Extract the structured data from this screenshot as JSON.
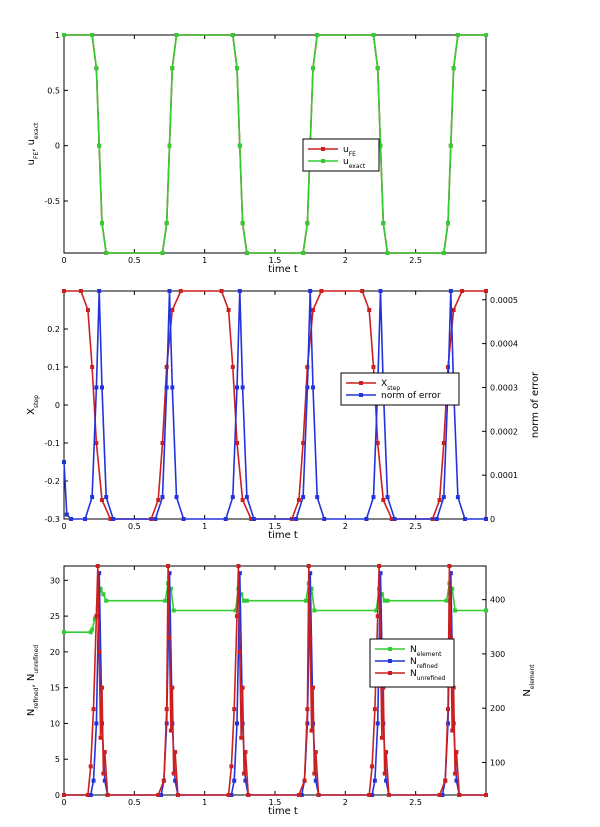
{
  "charts": [
    {
      "id": "panel1",
      "type": "line",
      "xlabel": "time t",
      "ylabel_left": {
        "parts": [
          {
            "t": "u"
          },
          {
            "t": "FE",
            "sub": true
          },
          {
            "t": ", u"
          },
          {
            "t": "exact",
            "sub": true
          }
        ]
      },
      "xlim": [
        0,
        3
      ],
      "ylim_left": [
        -0.97,
        1.0
      ],
      "xticks": [
        "0",
        "0.5",
        "1",
        "1.5",
        "2",
        "2.5"
      ],
      "xtick_values": [
        0,
        0.5,
        1,
        1.5,
        2,
        2.5
      ],
      "yticks_left": [
        "-0.5",
        "0",
        "0.5",
        "1"
      ],
      "ytick_values_left": [
        -0.5,
        0,
        0.5,
        1
      ],
      "legend": {
        "placement": "center-right",
        "entries": [
          {
            "parts": [
              {
                "t": "u"
              },
              {
                "t": "FE",
                "sub": true
              }
            ],
            "color": "#cc2020"
          },
          {
            "parts": [
              {
                "t": "u"
              },
              {
                "t": "exact",
                "sub": true
              }
            ],
            "color": "#33cc33"
          }
        ]
      },
      "series": [
        {
          "name": "u_FE",
          "axis": "left",
          "color": "#cc2020",
          "marker": "square",
          "x": [
            0,
            0.2,
            0.23,
            0.25,
            0.27,
            0.3,
            0.7,
            0.73,
            0.75,
            0.77,
            0.8,
            1.2,
            1.23,
            1.25,
            1.27,
            1.3,
            1.7,
            1.73,
            1.75,
            1.77,
            1.8,
            2.2,
            2.23,
            2.25,
            2.27,
            2.3,
            2.7,
            2.73,
            2.75,
            2.77,
            2.8,
            3
          ],
          "y": [
            1,
            1,
            0.7,
            0,
            -0.7,
            -0.97,
            -0.97,
            -0.7,
            0,
            0.7,
            1,
            1,
            0.7,
            0,
            -0.7,
            -0.97,
            -0.97,
            -0.7,
            0,
            0.7,
            1,
            1,
            0.7,
            0,
            -0.7,
            -0.97,
            -0.97,
            -0.7,
            0,
            0.7,
            1,
            1
          ]
        },
        {
          "name": "u_exact",
          "axis": "left",
          "color": "#33cc33",
          "marker": "square",
          "x": [
            0,
            0.2,
            0.23,
            0.25,
            0.27,
            0.3,
            0.7,
            0.73,
            0.75,
            0.77,
            0.8,
            1.2,
            1.23,
            1.25,
            1.27,
            1.3,
            1.7,
            1.73,
            1.75,
            1.77,
            1.8,
            2.2,
            2.23,
            2.25,
            2.27,
            2.3,
            2.7,
            2.73,
            2.75,
            2.77,
            2.8,
            3
          ],
          "y": [
            1,
            1,
            0.7,
            0,
            -0.7,
            -0.97,
            -0.97,
            -0.7,
            0,
            0.7,
            1,
            1,
            0.7,
            0,
            -0.7,
            -0.97,
            -0.97,
            -0.7,
            0,
            0.7,
            1,
            1,
            0.7,
            0,
            -0.7,
            -0.97,
            -0.97,
            -0.7,
            0,
            0.7,
            1,
            1
          ]
        }
      ]
    },
    {
      "id": "panel2",
      "type": "line",
      "xlabel": "time t",
      "ylabel_left": {
        "parts": [
          {
            "t": "X"
          },
          {
            "t": "step",
            "sub": true
          }
        ]
      },
      "ylabel_right": {
        "parts": [
          {
            "t": "norm of error"
          }
        ]
      },
      "xlim": [
        0,
        3
      ],
      "ylim_left": [
        -0.3,
        0.3
      ],
      "ylim_right": [
        0,
        0.00052
      ],
      "xticks": [
        "0",
        "0.5",
        "1",
        "1.5",
        "2",
        "2.5"
      ],
      "xtick_values": [
        0,
        0.5,
        1,
        1.5,
        2,
        2.5
      ],
      "yticks_left": [
        "-0.3",
        "-0.2",
        "-0.1",
        "0",
        "0.1",
        "0.2"
      ],
      "ytick_values_left": [
        -0.3,
        -0.2,
        -0.1,
        0,
        0.1,
        0.2
      ],
      "yticks_right": [
        "0",
        "0.0001",
        "0.0002",
        "0.0003",
        "0.0004",
        "0.0005"
      ],
      "ytick_values_right": [
        0,
        0.0001,
        0.0002,
        0.0003,
        0.0004,
        0.0005
      ],
      "legend": {
        "placement": "center-right",
        "entries": [
          {
            "parts": [
              {
                "t": "X"
              },
              {
                "t": "step",
                "sub": true
              }
            ],
            "color": "#cc2020"
          },
          {
            "parts": [
              {
                "t": "norm of error"
              }
            ],
            "color": "#2233dd"
          }
        ]
      },
      "series": [
        {
          "name": "X_step",
          "axis": "left",
          "color": "#cc2020",
          "marker": "square",
          "x": [
            0,
            0.12,
            0.17,
            0.2,
            0.23,
            0.27,
            0.33,
            0.62,
            0.67,
            0.7,
            0.73,
            0.77,
            0.83,
            1.12,
            1.17,
            1.2,
            1.23,
            1.27,
            1.33,
            1.62,
            1.67,
            1.7,
            1.73,
            1.77,
            1.83,
            2.12,
            2.17,
            2.2,
            2.23,
            2.27,
            2.33,
            2.62,
            2.67,
            2.7,
            2.73,
            2.77,
            2.83,
            3
          ],
          "y": [
            0.3,
            0.3,
            0.25,
            0.1,
            -0.1,
            -0.25,
            -0.3,
            -0.3,
            -0.25,
            -0.1,
            0.1,
            0.25,
            0.3,
            0.3,
            0.25,
            0.1,
            -0.1,
            -0.25,
            -0.3,
            -0.3,
            -0.25,
            -0.1,
            0.1,
            0.25,
            0.3,
            0.3,
            0.25,
            0.1,
            -0.1,
            -0.25,
            -0.3,
            -0.3,
            -0.25,
            -0.1,
            0.1,
            0.25,
            0.3,
            0.3
          ]
        },
        {
          "name": "norm of error",
          "axis": "right",
          "color": "#2233dd",
          "marker": "square",
          "x": [
            0,
            0.02,
            0.05,
            0.15,
            0.2,
            0.23,
            0.25,
            0.27,
            0.3,
            0.35,
            0.65,
            0.7,
            0.73,
            0.75,
            0.77,
            0.8,
            0.85,
            1.15,
            1.2,
            1.23,
            1.25,
            1.27,
            1.3,
            1.35,
            1.65,
            1.7,
            1.73,
            1.75,
            1.77,
            1.8,
            1.85,
            2.15,
            2.2,
            2.23,
            2.25,
            2.27,
            2.3,
            2.35,
            2.65,
            2.7,
            2.73,
            2.75,
            2.77,
            2.8,
            2.85,
            3
          ],
          "y": [
            0.00013,
            1e-05,
            0,
            0,
            5e-05,
            0.0003,
            0.00052,
            0.0003,
            5e-05,
            0,
            0,
            5e-05,
            0.0003,
            0.00052,
            0.0003,
            5e-05,
            0,
            0,
            5e-05,
            0.0003,
            0.00052,
            0.0003,
            5e-05,
            0,
            0,
            5e-05,
            0.0003,
            0.00052,
            0.0003,
            5e-05,
            0,
            0,
            5e-05,
            0.0003,
            0.00052,
            0.0003,
            5e-05,
            0,
            0,
            5e-05,
            0.0003,
            0.00052,
            0.0003,
            5e-05,
            0,
            0
          ]
        }
      ]
    },
    {
      "id": "panel3",
      "type": "line",
      "xlabel": "time t",
      "ylabel_left": {
        "parts": [
          {
            "t": "N"
          },
          {
            "t": "refined",
            "sub": true
          },
          {
            "t": ", N"
          },
          {
            "t": "unrefined",
            "sub": true
          }
        ]
      },
      "ylabel_right": {
        "parts": [
          {
            "t": "N"
          },
          {
            "t": "element",
            "sub": true
          }
        ]
      },
      "xlim": [
        0,
        3
      ],
      "ylim_left": [
        0,
        32
      ],
      "ylim_right": [
        40,
        462
      ],
      "xticks": [
        "0",
        "0.5",
        "1",
        "1.5",
        "2",
        "2.5"
      ],
      "xtick_values": [
        0,
        0.5,
        1,
        1.5,
        2,
        2.5
      ],
      "yticks_left": [
        "0",
        "5",
        "10",
        "15",
        "20",
        "25",
        "30"
      ],
      "ytick_values_left": [
        0,
        5,
        10,
        15,
        20,
        25,
        30
      ],
      "yticks_right": [
        "100",
        "200",
        "300",
        "400"
      ],
      "ytick_values_right": [
        100,
        200,
        300,
        400
      ],
      "legend": {
        "placement": "center-right",
        "entries": [
          {
            "parts": [
              {
                "t": "N"
              },
              {
                "t": "element",
                "sub": true
              }
            ],
            "color": "#33cc33"
          },
          {
            "parts": [
              {
                "t": "N"
              },
              {
                "t": "refined",
                "sub": true
              }
            ],
            "color": "#2233dd"
          },
          {
            "parts": [
              {
                "t": "N"
              },
              {
                "t": "unrefined",
                "sub": true
              }
            ],
            "color": "#cc2020"
          }
        ]
      },
      "series": [
        {
          "name": "N_element",
          "axis": "right",
          "color": "#33cc33",
          "marker": "square",
          "x": [
            0,
            0.19,
            0.2,
            0.22,
            0.24,
            0.26,
            0.28,
            0.3,
            0.72,
            0.74,
            0.76,
            0.78,
            1.22,
            1.24,
            1.26,
            1.28,
            1.3,
            1.72,
            1.74,
            1.76,
            1.78,
            2.22,
            2.24,
            2.26,
            2.28,
            2.3,
            2.72,
            2.74,
            2.76,
            2.78,
            3
          ],
          "y": [
            340,
            340,
            345,
            365,
            385,
            420,
            410,
            398,
            398,
            430,
            420,
            380,
            380,
            420,
            410,
            398,
            398,
            398,
            430,
            420,
            380,
            380,
            420,
            410,
            398,
            398,
            398,
            430,
            420,
            380,
            380
          ]
        },
        {
          "name": "N_refined",
          "axis": "left",
          "color": "#2233dd",
          "marker": "square",
          "x": [
            0,
            0.19,
            0.21,
            0.23,
            0.25,
            0.27,
            0.29,
            0.31,
            0.69,
            0.71,
            0.73,
            0.75,
            0.77,
            0.79,
            0.81,
            1.19,
            1.21,
            1.23,
            1.25,
            1.27,
            1.29,
            1.31,
            1.69,
            1.71,
            1.73,
            1.75,
            1.77,
            1.79,
            1.81,
            2.19,
            2.21,
            2.23,
            2.25,
            2.27,
            2.29,
            2.31,
            2.69,
            2.71,
            2.73,
            2.75,
            2.77,
            2.79,
            2.81,
            3
          ],
          "y": [
            0,
            0,
            2,
            10,
            31,
            10,
            2,
            0,
            0,
            2,
            10,
            31,
            10,
            2,
            0,
            0,
            2,
            10,
            31,
            10,
            2,
            0,
            0,
            2,
            10,
            31,
            10,
            2,
            0,
            0,
            2,
            10,
            31,
            10,
            2,
            0,
            0,
            2,
            10,
            31,
            10,
            2,
            0,
            0
          ]
        },
        {
          "name": "N_unrefined",
          "axis": "left",
          "color": "#cc2020",
          "marker": "square",
          "x": [
            0,
            0.17,
            0.19,
            0.21,
            0.23,
            0.24,
            0.25,
            0.26,
            0.27,
            0.28,
            0.29,
            0.31,
            0.67,
            0.71,
            0.73,
            0.74,
            0.75,
            0.76,
            0.77,
            0.78,
            0.79,
            0.81,
            1.17,
            1.19,
            1.21,
            1.23,
            1.24,
            1.25,
            1.26,
            1.27,
            1.28,
            1.29,
            1.31,
            1.67,
            1.71,
            1.73,
            1.74,
            1.75,
            1.76,
            1.77,
            1.78,
            1.79,
            1.81,
            2.17,
            2.19,
            2.21,
            2.23,
            2.24,
            2.25,
            2.26,
            2.27,
            2.28,
            2.29,
            2.31,
            2.67,
            2.71,
            2.73,
            2.74,
            2.75,
            2.76,
            2.77,
            2.78,
            2.79,
            2.81,
            3
          ],
          "y": [
            0,
            0,
            4,
            12,
            25,
            32,
            20,
            8,
            15,
            3,
            6,
            0,
            0,
            2,
            12,
            32,
            22,
            9,
            15,
            3,
            6,
            0,
            0,
            4,
            12,
            25,
            32,
            20,
            8,
            15,
            3,
            6,
            0,
            0,
            2,
            12,
            32,
            22,
            9,
            15,
            3,
            6,
            0,
            0,
            4,
            12,
            25,
            32,
            20,
            8,
            15,
            3,
            6,
            0,
            0,
            2,
            12,
            32,
            22,
            9,
            15,
            3,
            6,
            0,
            0
          ]
        }
      ]
    }
  ]
}
